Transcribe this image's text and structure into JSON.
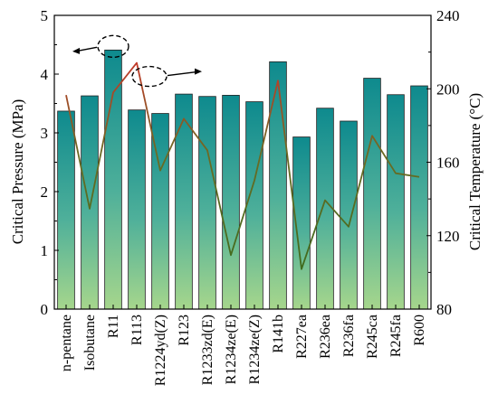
{
  "chart_data": {
    "type": "bar",
    "categories": [
      "n-pentane",
      "Isobutane",
      "R11",
      "R113",
      "R1224yd(Z)",
      "R123",
      "R1233zd(E)",
      "R1234ze(E)",
      "R1234ze(Z)",
      "R141b",
      "R227ea",
      "R236ea",
      "R236fa",
      "R245ca",
      "R245fa",
      "R600"
    ],
    "ylabel": "Critical Pressure (MPa)",
    "y2label": "Critical Temperature (°C)",
    "ylim": [
      0,
      5
    ],
    "y2lim": [
      80,
      240
    ],
    "yticks": [
      "0",
      "1",
      "2",
      "3",
      "4",
      "5"
    ],
    "y2ticks": [
      "80",
      "120",
      "160",
      "200",
      "240"
    ],
    "series": [
      {
        "axis": "left",
        "kind": "bar",
        "values": [
          3.37,
          3.63,
          4.41,
          3.39,
          3.33,
          3.66,
          3.62,
          3.64,
          3.53,
          4.21,
          2.93,
          3.42,
          3.2,
          3.93,
          3.65,
          3.8
        ]
      },
      {
        "axis": "right",
        "kind": "line",
        "values": [
          196.6,
          134.7,
          198.0,
          214.1,
          155.5,
          183.7,
          166.5,
          109.4,
          150.1,
          204.4,
          101.8,
          139.3,
          124.9,
          174.4,
          154.0,
          152.0
        ]
      }
    ],
    "colors": {
      "bar_top": "#0e8a8e",
      "bar_bottom": "#a6d68c",
      "line": "#4a6b22",
      "line_accent": "#c23a2a"
    }
  }
}
